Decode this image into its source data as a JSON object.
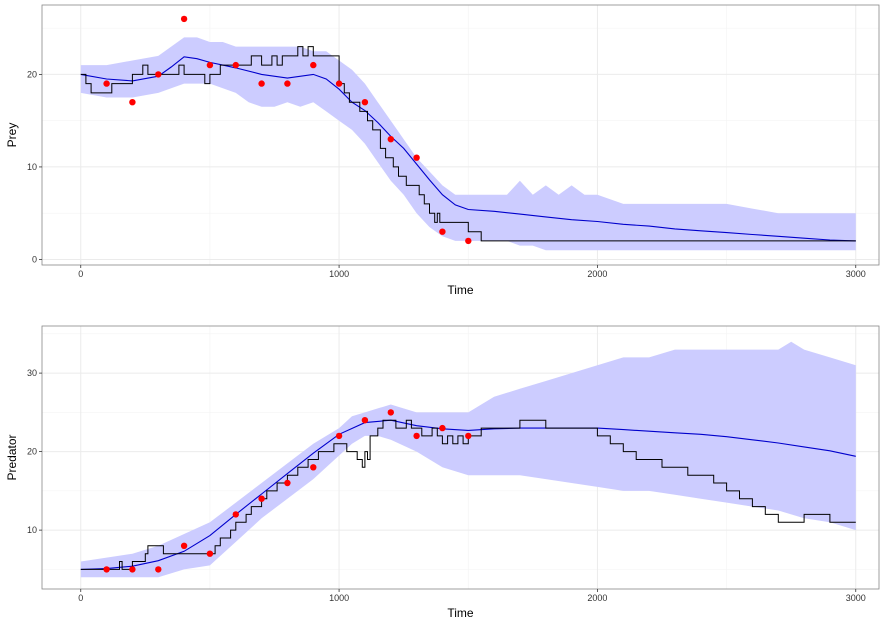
{
  "colors": {
    "band": "#ccccff",
    "mean_line": "#0000cc",
    "trajectory": "#000000",
    "observations": "#ff0000",
    "grid": "#ebebeb",
    "panel_border": "#888888"
  },
  "chart_data": [
    {
      "type": "line",
      "xlabel": "Time",
      "ylabel": "Prey",
      "xlim": [
        -150,
        3090
      ],
      "ylim": [
        -0.6,
        27.5
      ],
      "x_ticks": [
        0,
        1000,
        2000,
        3000
      ],
      "x_tick_labels": [
        "0",
        "1000",
        "2000",
        "3000"
      ],
      "y_ticks": [
        0,
        10,
        20
      ],
      "y_tick_labels": [
        "0",
        "10",
        "20"
      ],
      "grid": true,
      "legend": "none",
      "series": [
        {
          "kind": "band",
          "x": [
            0,
            100,
            200,
            300,
            350,
            400,
            450,
            500,
            550,
            600,
            650,
            700,
            750,
            800,
            850,
            900,
            950,
            1000,
            1050,
            1100,
            1150,
            1200,
            1250,
            1300,
            1350,
            1400,
            1450,
            1500,
            1550,
            1600,
            1650,
            1700,
            1750,
            1800,
            1850,
            1900,
            1950,
            2000,
            2100,
            2200,
            2300,
            2400,
            2500,
            2600,
            2700,
            2800,
            2900,
            3000
          ],
          "lower": [
            18,
            17.5,
            17.5,
            18,
            18.5,
            19,
            19,
            19,
            18.5,
            18,
            17,
            16.5,
            16.5,
            17,
            16.5,
            17,
            16,
            15,
            14,
            12.5,
            10.5,
            8.5,
            7,
            5,
            3.5,
            2.5,
            2,
            2,
            2,
            2,
            2,
            1.5,
            1.5,
            1,
            1,
            1,
            1,
            1,
            1,
            1,
            1,
            1,
            1,
            1,
            1,
            1,
            1,
            1
          ],
          "upper": [
            21,
            21,
            21.5,
            22,
            23,
            24,
            24,
            23.5,
            23.5,
            23,
            23,
            23,
            23,
            23,
            23,
            22.5,
            22.5,
            21.5,
            20.5,
            19,
            17,
            15,
            13,
            11,
            9.5,
            8,
            7,
            7,
            7,
            7,
            7,
            8.5,
            7,
            8,
            7,
            8,
            7,
            7,
            6,
            6,
            6,
            6,
            6,
            5.5,
            5,
            5,
            5,
            5
          ]
        },
        {
          "kind": "mean",
          "x": [
            0,
            100,
            200,
            300,
            350,
            400,
            450,
            500,
            550,
            600,
            700,
            800,
            900,
            950,
            1000,
            1050,
            1100,
            1150,
            1200,
            1250,
            1300,
            1350,
            1400,
            1450,
            1500,
            1600,
            1700,
            1800,
            1900,
            2000,
            2100,
            2200,
            2300,
            2400,
            2500,
            2600,
            2700,
            2800,
            2900,
            3000
          ],
          "y": [
            20,
            19.5,
            19.3,
            19.8,
            20.8,
            21.9,
            21.7,
            21.3,
            21,
            20.7,
            20,
            19.6,
            20,
            19.5,
            18.4,
            17,
            16.1,
            14.8,
            13.3,
            12,
            10.3,
            8.6,
            7,
            5.9,
            5.4,
            5.2,
            4.9,
            4.6,
            4.3,
            4.1,
            3.8,
            3.6,
            3.3,
            3.1,
            2.9,
            2.7,
            2.5,
            2.3,
            2.1,
            2
          ]
        },
        {
          "kind": "trajectory",
          "x": [
            0,
            20,
            40,
            60,
            80,
            100,
            120,
            150,
            180,
            200,
            220,
            240,
            260,
            280,
            300,
            340,
            360,
            380,
            400,
            420,
            440,
            460,
            480,
            500,
            540,
            560,
            600,
            640,
            660,
            700,
            720,
            740,
            760,
            780,
            800,
            840,
            860,
            880,
            900,
            920,
            940,
            960,
            980,
            1000,
            1010,
            1020,
            1040,
            1060,
            1080,
            1100,
            1110,
            1130,
            1150,
            1160,
            1180,
            1200,
            1210,
            1230,
            1250,
            1260,
            1280,
            1300,
            1310,
            1330,
            1350,
            1370,
            1380,
            1390,
            1400,
            1450,
            1500,
            1550,
            1600,
            1800,
            2000,
            2500,
            3000
          ],
          "y": [
            20,
            19,
            18,
            18,
            18,
            18,
            19,
            19,
            19,
            20,
            20,
            21,
            20,
            20,
            20,
            20,
            20,
            21,
            20,
            20,
            20,
            20,
            19,
            20,
            21,
            21,
            21,
            21,
            22,
            21,
            21,
            22,
            21,
            22,
            22,
            23,
            22,
            23,
            22,
            22,
            22,
            22,
            22,
            19,
            19,
            18,
            17,
            17,
            16,
            16,
            15,
            14,
            14,
            12,
            11,
            11,
            10,
            9,
            9,
            8,
            8,
            8,
            7,
            6,
            5,
            4,
            5,
            4,
            4,
            4,
            3,
            2,
            2,
            2,
            2,
            2,
            2
          ]
        },
        {
          "kind": "observations",
          "x": [
            100,
            200,
            300,
            400,
            500,
            600,
            700,
            800,
            900,
            1000,
            1100,
            1200,
            1300,
            1400,
            1500
          ],
          "y": [
            19,
            17,
            20,
            26,
            21,
            21,
            19,
            19,
            21,
            19,
            17,
            13,
            11,
            3,
            2
          ]
        }
      ]
    },
    {
      "type": "line",
      "xlabel": "Time",
      "ylabel": "Predator",
      "xlim": [
        -150,
        3090
      ],
      "ylim": [
        2.5,
        36
      ],
      "x_ticks": [
        0,
        1000,
        2000,
        3000
      ],
      "x_tick_labels": [
        "0",
        "1000",
        "2000",
        "3000"
      ],
      "y_ticks": [
        10,
        20,
        30
      ],
      "y_tick_labels": [
        "10",
        "20",
        "30"
      ],
      "grid": true,
      "legend": "none",
      "series": [
        {
          "kind": "band",
          "x": [
            0,
            100,
            200,
            300,
            400,
            500,
            600,
            700,
            800,
            900,
            1000,
            1050,
            1100,
            1150,
            1200,
            1300,
            1400,
            1500,
            1600,
            1700,
            1800,
            1900,
            2000,
            2100,
            2200,
            2300,
            2400,
            2500,
            2600,
            2700,
            2750,
            2800,
            2900,
            3000
          ],
          "lower": [
            4,
            4,
            4,
            4,
            5,
            5.5,
            8.5,
            11.5,
            14,
            16.5,
            19.5,
            21,
            22,
            22,
            21.5,
            20,
            18,
            17,
            17,
            17,
            16.5,
            16,
            15.5,
            15,
            15,
            14.5,
            14,
            13.5,
            13,
            12.5,
            12,
            11.5,
            11,
            10
          ],
          "upper": [
            6,
            6.5,
            7,
            8,
            9.5,
            11,
            13.5,
            16,
            18.5,
            21,
            23,
            24.5,
            25,
            25.5,
            26,
            25,
            25,
            25,
            27,
            28,
            29,
            30,
            31,
            32,
            32,
            33,
            33,
            33,
            33,
            33,
            34,
            33,
            32,
            31
          ]
        },
        {
          "kind": "mean",
          "x": [
            0,
            100,
            200,
            300,
            400,
            500,
            600,
            700,
            800,
            900,
            1000,
            1100,
            1200,
            1300,
            1400,
            1500,
            1600,
            1700,
            1800,
            1900,
            2000,
            2100,
            2200,
            2300,
            2400,
            2500,
            2600,
            2700,
            2800,
            2900,
            3000
          ],
          "y": [
            5,
            5.1,
            5.4,
            6.1,
            7.3,
            9.3,
            12,
            14.6,
            17.2,
            19.8,
            22.2,
            23.7,
            24,
            23.3,
            22.9,
            22.7,
            22.9,
            23,
            23,
            23,
            23,
            22.8,
            22.6,
            22.4,
            22.2,
            21.9,
            21.5,
            21.1,
            20.6,
            20.1,
            19.4
          ]
        },
        {
          "kind": "trajectory",
          "x": [
            0,
            100,
            150,
            160,
            180,
            200,
            250,
            260,
            300,
            320,
            340,
            380,
            400,
            450,
            500,
            520,
            540,
            560,
            580,
            600,
            620,
            640,
            660,
            680,
            700,
            720,
            740,
            760,
            780,
            800,
            820,
            840,
            860,
            880,
            900,
            920,
            940,
            960,
            980,
            1000,
            1030,
            1050,
            1070,
            1090,
            1100,
            1110,
            1120,
            1150,
            1170,
            1200,
            1220,
            1240,
            1260,
            1280,
            1300,
            1320,
            1340,
            1360,
            1380,
            1400,
            1420,
            1440,
            1460,
            1480,
            1500,
            1550,
            1600,
            1650,
            1700,
            1750,
            1800,
            1850,
            1900,
            1950,
            2000,
            2050,
            2100,
            2150,
            2200,
            2250,
            2300,
            2350,
            2400,
            2450,
            2500,
            2550,
            2600,
            2620,
            2650,
            2700,
            2750,
            2780,
            2800,
            2850,
            2900,
            2950,
            3000
          ],
          "y": [
            5,
            5,
            6,
            5,
            5,
            6,
            7,
            8,
            8,
            7,
            7,
            7,
            7,
            7,
            7,
            8,
            9,
            9,
            10,
            11,
            11,
            12,
            13,
            13,
            14,
            15,
            15,
            16,
            16,
            17,
            17,
            18,
            18,
            19,
            19,
            20,
            20,
            20,
            21,
            21,
            20,
            20,
            19,
            18,
            20,
            19,
            22,
            23,
            24,
            24,
            23,
            23,
            24,
            23,
            23,
            22,
            22,
            23,
            22,
            21,
            22,
            21,
            22,
            21,
            22,
            23,
            23,
            23,
            24,
            24,
            23,
            23,
            23,
            23,
            22,
            21,
            20,
            19,
            19,
            18,
            18,
            17,
            17,
            16,
            15,
            14,
            13,
            13,
            12,
            11,
            11,
            11,
            12,
            12,
            11,
            11,
            11
          ]
        },
        {
          "kind": "observations",
          "x": [
            100,
            200,
            300,
            400,
            500,
            600,
            700,
            800,
            900,
            1000,
            1100,
            1200,
            1300,
            1400,
            1500
          ],
          "y": [
            5,
            5,
            5,
            8,
            7,
            12,
            14,
            16,
            18,
            22,
            24,
            25,
            22,
            23,
            22
          ]
        }
      ]
    }
  ]
}
